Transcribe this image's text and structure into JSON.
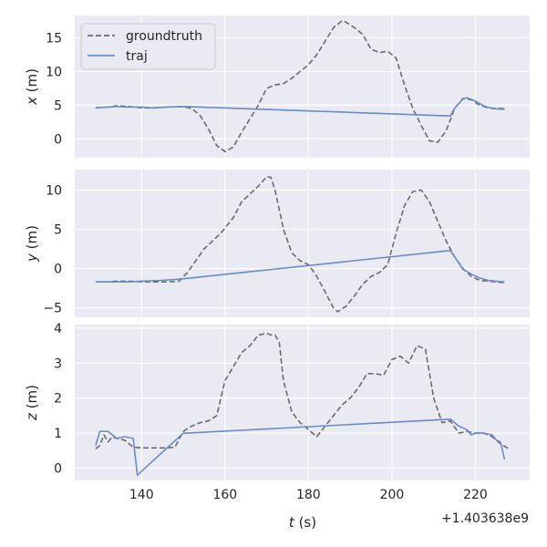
{
  "chart_data": {
    "type": "line",
    "shared_x": {
      "label": "t (s)",
      "ticks": [
        140,
        160,
        180,
        200,
        220
      ],
      "tick_labels": [
        "140",
        "160",
        "180",
        "200",
        "220"
      ],
      "offset_text": "+1.403638e9",
      "range": [
        124,
        233
      ]
    },
    "legend": {
      "placement": "top-left",
      "entries": [
        "groundtruth",
        "traj"
      ]
    },
    "colors": {
      "groundtruth": "#6b6b6b",
      "traj": "#6b8cc4",
      "panel": "#eaeaf2",
      "grid": "#ffffff"
    },
    "grid": true,
    "panels": [
      {
        "ylabel": "x (m)",
        "ylim": [
          -2.8,
          18.3
        ],
        "yticks": [
          0,
          5,
          10,
          15
        ],
        "ytick_labels": [
          "0",
          "5",
          "10",
          "15"
        ],
        "series": [
          {
            "name": "groundtruth",
            "style": "dashed",
            "x": [
              129,
              132,
              134,
              137,
              140,
              143,
              146,
              150,
              152,
              154,
              156,
              158,
              160,
              162,
              164,
              166,
              168,
              170,
              172,
              174,
              176,
              178,
              180,
              182,
              184,
              186,
              188,
              189,
              191,
              193,
              195,
              197,
              199,
              201,
              203,
              205,
              207,
              209,
              211,
              213,
              215,
              217,
              219,
              221,
              223,
              225,
              227
            ],
            "y": [
              4.6,
              4.7,
              4.9,
              4.8,
              4.6,
              4.6,
              4.7,
              4.8,
              4.5,
              3.5,
              1.5,
              -1.0,
              -1.9,
              -1.2,
              1.0,
              3.0,
              5.0,
              7.5,
              8.0,
              8.2,
              9.0,
              10.0,
              11.0,
              12.5,
              14.5,
              16.5,
              17.5,
              17.3,
              16.5,
              15.5,
              13.3,
              12.8,
              13.0,
              12.0,
              8.0,
              4.5,
              2.0,
              -0.3,
              -0.5,
              1.2,
              4.5,
              6.0,
              5.8,
              5.0,
              4.6,
              4.5,
              4.5
            ]
          },
          {
            "name": "traj",
            "style": "solid",
            "x": [
              129,
              132,
              134,
              137,
              140,
              143,
              146,
              150,
              214,
              215,
              217,
              218,
              220,
              222,
              224,
              226,
              227
            ],
            "y": [
              4.6,
              4.7,
              4.8,
              4.7,
              4.7,
              4.6,
              4.7,
              4.8,
              3.4,
              4.5,
              5.9,
              6.1,
              5.6,
              4.9,
              4.5,
              4.4,
              4.4
            ]
          }
        ]
      },
      {
        "ylabel": "y (m)",
        "ylim": [
          -6.2,
          12.6
        ],
        "yticks": [
          -5,
          0,
          5,
          10
        ],
        "ytick_labels": [
          "−5",
          "0",
          "5",
          "10"
        ],
        "series": [
          {
            "name": "groundtruth",
            "style": "dashed",
            "x": [
              129,
              132,
              134,
              137,
              140,
              143,
              146,
              149,
              151,
              153,
              155,
              157,
              159,
              162,
              164,
              166,
              168,
              170,
              171,
              172,
              174,
              176,
              178,
              180,
              182,
              184,
              186,
              187,
              189,
              191,
              193,
              195,
              197,
              199,
              201,
              203,
              205,
              207,
              209,
              211,
              213,
              215,
              217,
              219,
              221,
              223,
              225,
              227
            ],
            "y": [
              -1.7,
              -1.7,
              -1.6,
              -1.6,
              -1.7,
              -1.7,
              -1.7,
              -1.6,
              -0.5,
              1.0,
              2.5,
              3.5,
              4.5,
              6.5,
              8.5,
              9.5,
              10.5,
              11.7,
              11.6,
              10.0,
              5.0,
              2.0,
              1.0,
              0.5,
              -1.0,
              -3.0,
              -5.0,
              -5.5,
              -4.8,
              -3.5,
              -2.0,
              -1.0,
              -0.5,
              0.5,
              4.5,
              8.0,
              9.8,
              10.0,
              8.5,
              6.0,
              3.5,
              1.5,
              0.0,
              -1.0,
              -1.5,
              -1.6,
              -1.7,
              -1.8
            ]
          },
          {
            "name": "traj",
            "style": "solid",
            "x": [
              129,
              132,
              134,
              137,
              140,
              145,
              150,
              214,
              215,
              217,
              219,
              221,
              223,
              225,
              227
            ],
            "y": [
              -1.7,
              -1.7,
              -1.7,
              -1.7,
              -1.6,
              -1.5,
              -1.3,
              2.3,
              1.5,
              -0.1,
              -0.7,
              -1.2,
              -1.5,
              -1.6,
              -1.7
            ]
          }
        ]
      },
      {
        "ylabel": "z (m)",
        "ylim": [
          -0.35,
          4.1
        ],
        "yticks": [
          0,
          1,
          2,
          3,
          4
        ],
        "ytick_labels": [
          "0",
          "1",
          "2",
          "3",
          "4"
        ],
        "series": [
          {
            "name": "groundtruth",
            "style": "dashed",
            "x": [
              129,
              130,
              131,
              132,
              133,
              134,
              136,
              138,
              140,
              143,
              146,
              148,
              150,
              152,
              154,
              156,
              158,
              160,
              162,
              164,
              166,
              168,
              170,
              171,
              172,
              173,
              174,
              176,
              178,
              180,
              182,
              184,
              186,
              188,
              190,
              192,
              194,
              196,
              198,
              200,
              202,
              204,
              206,
              208,
              210,
              212,
              214,
              216,
              218,
              220,
              222,
              224,
              226,
              228
            ],
            "y": [
              0.55,
              0.65,
              0.95,
              0.75,
              0.9,
              0.85,
              0.8,
              0.6,
              0.58,
              0.58,
              0.58,
              0.6,
              1.05,
              1.2,
              1.3,
              1.35,
              1.5,
              2.5,
              2.9,
              3.3,
              3.5,
              3.8,
              3.85,
              3.8,
              3.8,
              3.6,
              2.5,
              1.6,
              1.3,
              1.1,
              0.9,
              1.2,
              1.5,
              1.8,
              2.0,
              2.3,
              2.7,
              2.7,
              2.65,
              3.1,
              3.2,
              3.0,
              3.5,
              3.4,
              2.0,
              1.3,
              1.35,
              1.0,
              1.05,
              1.0,
              1.0,
              0.9,
              0.7,
              0.55
            ]
          },
          {
            "name": "traj",
            "style": "solid",
            "x": [
              129,
              130,
              131,
              132,
              133,
              134,
              136,
              138,
              139,
              150,
              151,
              214,
              215,
              216,
              218,
              219,
              220,
              222,
              224,
              225,
              226,
              227
            ],
            "y": [
              0.65,
              1.05,
              1.05,
              1.05,
              0.95,
              0.85,
              0.9,
              0.85,
              -0.2,
              1.0,
              1.0,
              1.4,
              1.3,
              1.2,
              1.1,
              0.95,
              1.0,
              1.0,
              0.95,
              0.8,
              0.75,
              0.25
            ]
          }
        ]
      }
    ]
  }
}
